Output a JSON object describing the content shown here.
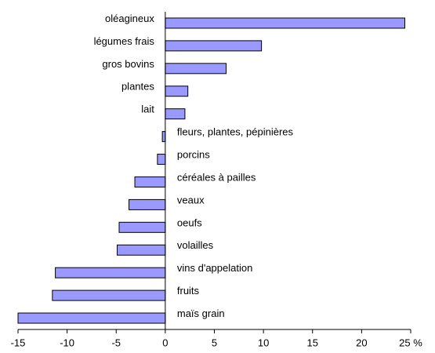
{
  "chart_data": {
    "type": "bar",
    "orientation": "horizontal",
    "categories": [
      "oléagineux",
      "légumes frais",
      "gros bovins",
      "plantes",
      "lait",
      "fleurs, plantes, pépinières",
      "porcins",
      "céréales à pailles",
      "veaux",
      "oeufs",
      "volailles",
      "vins d'appelation",
      "fruits",
      "maïs grain"
    ],
    "values": [
      24.4,
      9.8,
      6.2,
      2.3,
      2.0,
      -0.3,
      -0.8,
      -3.1,
      -3.7,
      -4.7,
      -4.9,
      -11.2,
      -11.5,
      -15.0
    ],
    "color": "#9999ff",
    "xlim": [
      -15,
      25
    ],
    "xticks": [
      -15,
      -10,
      -5,
      0,
      5,
      10,
      15,
      20,
      {
        "value": 25,
        "label": "25 %"
      }
    ]
  }
}
